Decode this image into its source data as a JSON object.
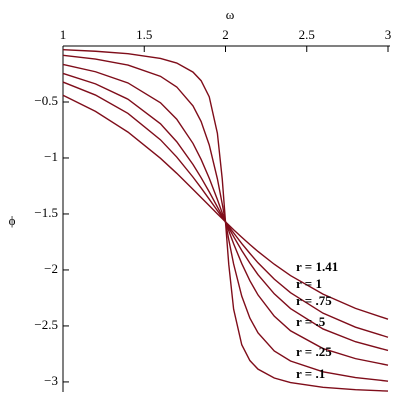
{
  "chart_data": {
    "type": "line",
    "x_label": "ω",
    "y_label": "ϕ",
    "x": [
      1,
      1.2,
      1.4,
      1.6,
      1.7,
      1.8,
      1.85,
      1.9,
      1.95,
      1.98,
      2,
      2.02,
      2.05,
      2.1,
      2.15,
      2.2,
      2.3,
      2.4,
      2.6,
      2.8,
      3
    ],
    "series": [
      {
        "name": "r = 1.41",
        "color": "#7f0d1a",
        "values": [
          -0.44,
          -0.584,
          -0.769,
          -1.003,
          -1.137,
          -1.28,
          -1.353,
          -1.426,
          -1.499,
          -1.542,
          -1.571,
          -1.599,
          -1.641,
          -1.708,
          -1.773,
          -1.835,
          -1.949,
          -2.05,
          -2.216,
          -2.343,
          -2.44
        ]
      },
      {
        "name": "r = 1",
        "color": "#7f0d1a",
        "values": [
          -0.322,
          -0.438,
          -0.602,
          -0.838,
          -0.992,
          -1.171,
          -1.268,
          -1.368,
          -1.47,
          -1.531,
          -1.571,
          -1.611,
          -1.669,
          -1.764,
          -1.852,
          -1.936,
          -2.082,
          -2.203,
          -2.386,
          -2.511,
          -2.601
        ]
      },
      {
        "name": "r = .75",
        "color": "#7f0d1a",
        "values": [
          -0.245,
          -0.338,
          -0.475,
          -0.695,
          -0.855,
          -1.058,
          -1.176,
          -1.303,
          -1.437,
          -1.517,
          -1.571,
          -1.624,
          -1.702,
          -1.826,
          -1.939,
          -2.042,
          -2.213,
          -2.345,
          -2.527,
          -2.641,
          -2.719
        ]
      },
      {
        "name": "r = .5",
        "color": "#7f0d1a",
        "values": [
          -0.165,
          -0.23,
          -0.33,
          -0.507,
          -0.654,
          -0.87,
          -1.013,
          -1.181,
          -1.371,
          -1.491,
          -1.571,
          -1.65,
          -1.766,
          -1.943,
          -2.096,
          -2.223,
          -2.413,
          -2.543,
          -2.702,
          -2.792,
          -2.85
        ]
      },
      {
        "name": "r = .25",
        "color": "#7f0d1a",
        "values": [
          -0.083,
          -0.117,
          -0.17,
          -0.271,
          -0.366,
          -0.535,
          -0.675,
          -0.884,
          -1.186,
          -1.411,
          -1.571,
          -1.729,
          -1.947,
          -2.234,
          -2.43,
          -2.562,
          -2.723,
          -2.813,
          -2.91,
          -2.961,
          -2.993
        ]
      },
      {
        "name": "r = .1",
        "color": "#7f0d1a",
        "values": [
          -0.033,
          -0.047,
          -0.069,
          -0.111,
          -0.152,
          -0.233,
          -0.31,
          -0.454,
          -0.779,
          -1.188,
          -1.571,
          -1.95,
          -2.35,
          -2.668,
          -2.809,
          -2.886,
          -2.965,
          -3.006,
          -3.048,
          -3.069,
          -3.082
        ]
      }
    ],
    "xlim": [
      1,
      3
    ],
    "ylim": [
      -3.09,
      0
    ],
    "xticks": [
      1,
      1.5,
      2,
      2.5,
      3
    ],
    "yticks": [
      {
        "value": -0.5,
        "label": "−0.5"
      },
      {
        "value": -1,
        "label": "−1"
      },
      {
        "value": -1.5,
        "label": "−1.5"
      },
      {
        "value": -2,
        "label": "−2"
      },
      {
        "value": -2.5,
        "label": "−2.5"
      },
      {
        "value": -3,
        "label": "−3"
      }
    ]
  }
}
